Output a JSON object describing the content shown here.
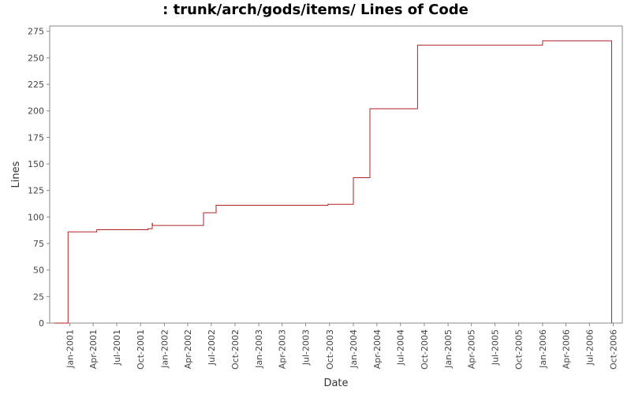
{
  "chart_data": {
    "type": "line",
    "title": ": trunk/arch/gods/items/ Lines of Code",
    "xlabel": "Date",
    "ylabel": "Lines",
    "x_axis_type": "date",
    "xlim": [
      "2000-10-15",
      "2006-11-05"
    ],
    "ylim": [
      0,
      280
    ],
    "y_ticks": [
      0,
      25,
      50,
      75,
      100,
      125,
      150,
      175,
      200,
      225,
      250,
      275
    ],
    "x_ticks": [
      {
        "date": "2001-01-01",
        "label": "Jan-2001"
      },
      {
        "date": "2001-04-01",
        "label": "Apr-2001"
      },
      {
        "date": "2001-07-01",
        "label": "Jul-2001"
      },
      {
        "date": "2001-10-01",
        "label": "Oct-2001"
      },
      {
        "date": "2002-01-01",
        "label": "Jan-2002"
      },
      {
        "date": "2002-04-01",
        "label": "Apr-2002"
      },
      {
        "date": "2002-07-01",
        "label": "Jul-2002"
      },
      {
        "date": "2002-10-01",
        "label": "Oct-2002"
      },
      {
        "date": "2003-01-01",
        "label": "Jan-2003"
      },
      {
        "date": "2003-04-01",
        "label": "Apr-2003"
      },
      {
        "date": "2003-07-01",
        "label": "Jul-2003"
      },
      {
        "date": "2003-10-01",
        "label": "Oct-2003"
      },
      {
        "date": "2004-01-01",
        "label": "Jan-2004"
      },
      {
        "date": "2004-04-01",
        "label": "Apr-2004"
      },
      {
        "date": "2004-07-01",
        "label": "Jul-2004"
      },
      {
        "date": "2004-10-01",
        "label": "Oct-2004"
      },
      {
        "date": "2005-01-01",
        "label": "Jan-2005"
      },
      {
        "date": "2005-04-01",
        "label": "Apr-2005"
      },
      {
        "date": "2005-07-01",
        "label": "Jul-2005"
      },
      {
        "date": "2005-10-01",
        "label": "Oct-2005"
      },
      {
        "date": "2006-01-01",
        "label": "Jan-2006"
      },
      {
        "date": "2006-04-01",
        "label": "Apr-2006"
      },
      {
        "date": "2006-07-01",
        "label": "Jul-2006"
      },
      {
        "date": "2006-10-01",
        "label": "Oct-2006"
      }
    ],
    "grid": false,
    "line_color": "#b22222",
    "series": [
      {
        "step": true,
        "points": [
          {
            "x": "2000-11-01",
            "y": 0
          },
          {
            "x": "2000-12-25",
            "y": 0
          },
          {
            "x": "2000-12-25",
            "y": 86
          },
          {
            "x": "2001-04-15",
            "y": 86
          },
          {
            "x": "2001-04-15",
            "y": 88
          },
          {
            "x": "2001-10-30",
            "y": 88
          },
          {
            "x": "2001-10-30",
            "y": 89
          },
          {
            "x": "2001-11-15",
            "y": 89
          },
          {
            "x": "2001-11-15",
            "y": 94
          },
          {
            "x": "2001-11-16",
            "y": 94
          },
          {
            "x": "2001-11-16",
            "y": 92
          },
          {
            "x": "2002-06-01",
            "y": 92
          },
          {
            "x": "2002-06-01",
            "y": 104
          },
          {
            "x": "2002-07-20",
            "y": 104
          },
          {
            "x": "2002-07-20",
            "y": 111
          },
          {
            "x": "2003-09-25",
            "y": 111
          },
          {
            "x": "2003-09-25",
            "y": 112
          },
          {
            "x": "2004-01-01",
            "y": 112
          },
          {
            "x": "2004-01-01",
            "y": 137
          },
          {
            "x": "2004-03-05",
            "y": 137
          },
          {
            "x": "2004-03-05",
            "y": 202
          },
          {
            "x": "2004-09-05",
            "y": 202
          },
          {
            "x": "2004-09-05",
            "y": 262
          },
          {
            "x": "2006-01-01",
            "y": 262
          },
          {
            "x": "2006-01-01",
            "y": 266
          },
          {
            "x": "2006-09-25",
            "y": 266
          },
          {
            "x": "2006-09-25",
            "y": 0
          }
        ]
      }
    ]
  }
}
